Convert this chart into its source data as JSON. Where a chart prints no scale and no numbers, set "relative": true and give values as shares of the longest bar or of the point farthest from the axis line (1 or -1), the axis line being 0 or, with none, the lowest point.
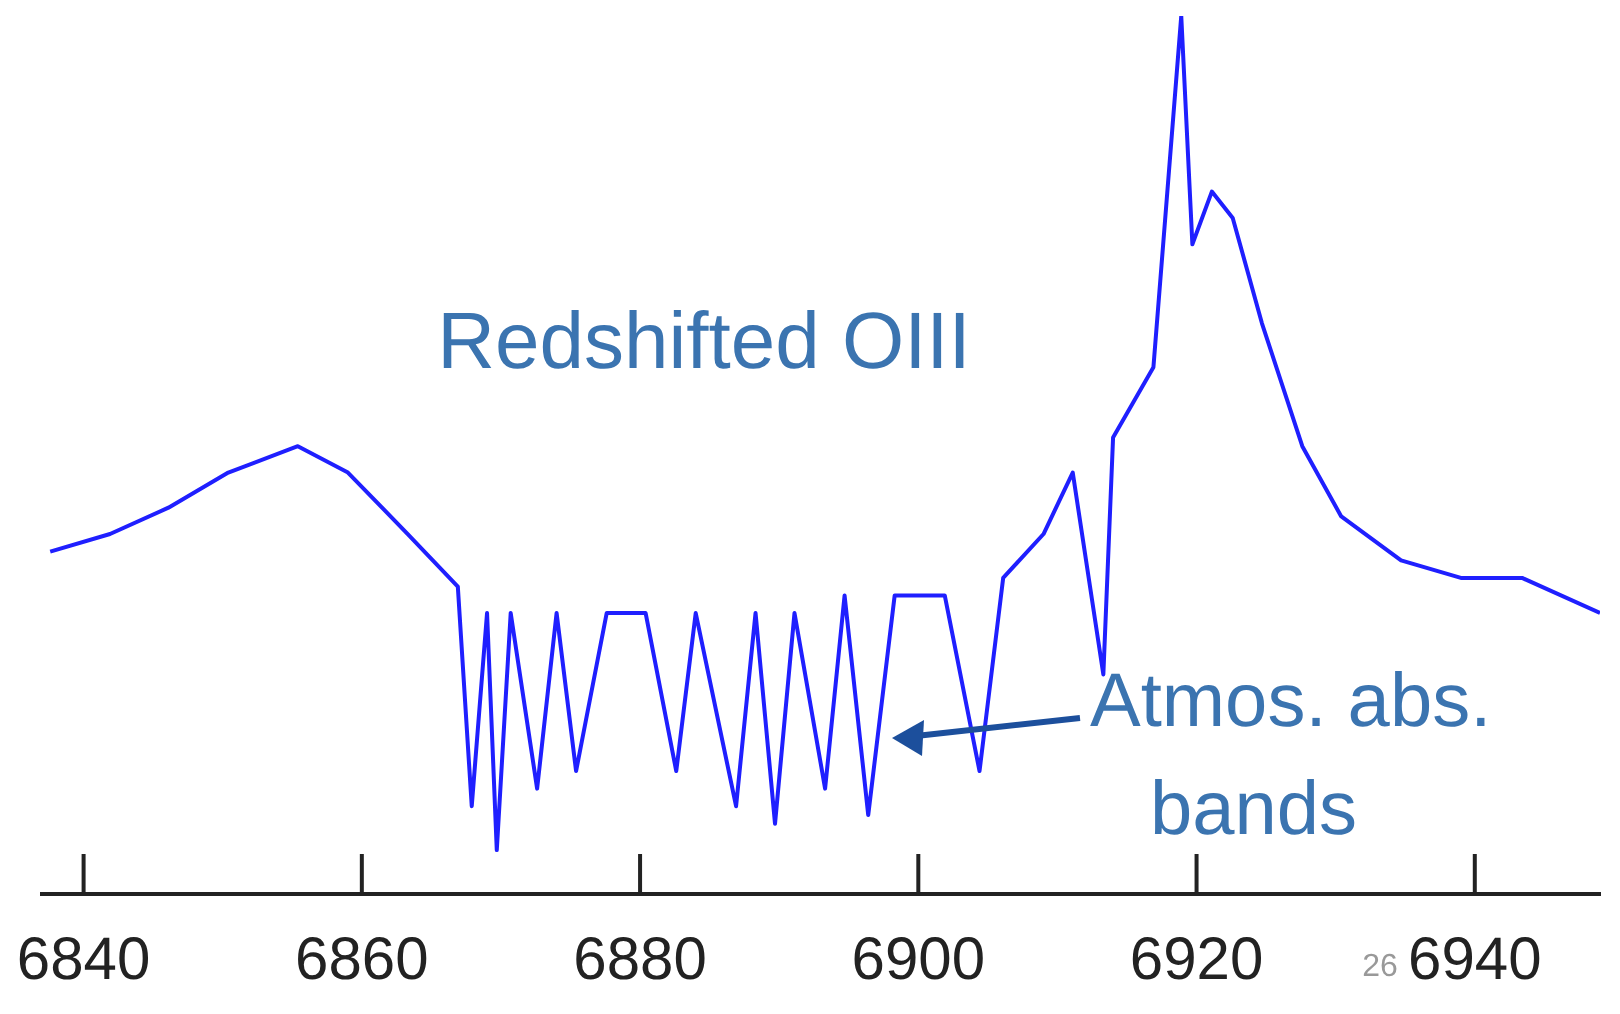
{
  "chart_data": {
    "type": "line",
    "relative": true,
    "color": "#1f1fff",
    "xlim": [
      6837,
      6949
    ],
    "xticks": [
      6840,
      6860,
      6880,
      6900,
      6920,
      6940
    ],
    "x": [
      6837.6,
      6841.9,
      6846.1,
      6850.4,
      6855.4,
      6859,
      6863.3,
      6866.9,
      6867.9,
      6869,
      6869.7,
      6870.7,
      6872.6,
      6874,
      6875.4,
      6877.6,
      6880.4,
      6882.6,
      6884,
      6886.9,
      6888.3,
      6889.7,
      6891.1,
      6893.3,
      6894.7,
      6896.4,
      6898.3,
      6901.9,
      6904.4,
      6906.1,
      6909,
      6911.1,
      6913.3,
      6914,
      6916.9,
      6918.9,
      6919.7,
      6921.1,
      6922.6,
      6924.7,
      6927.6,
      6930.4,
      6934.7,
      6939,
      6943.4,
      6949
    ],
    "values": [
      0.39,
      0.41,
      0.44,
      0.48,
      0.51,
      0.48,
      0.41,
      0.35,
      0.1,
      0.32,
      0.05,
      0.32,
      0.12,
      0.32,
      0.14,
      0.32,
      0.32,
      0.14,
      0.32,
      0.1,
      0.32,
      0.08,
      0.32,
      0.12,
      0.34,
      0.09,
      0.34,
      0.34,
      0.14,
      0.36,
      0.41,
      0.48,
      0.25,
      0.52,
      0.6,
      1,
      0.74,
      0.8,
      0.77,
      0.65,
      0.51,
      0.43,
      0.38,
      0.36,
      0.36,
      0.32
    ],
    "annotations": [
      "Redshifted OIII",
      "Atmos. abs.\nbands",
      "26"
    ]
  }
}
